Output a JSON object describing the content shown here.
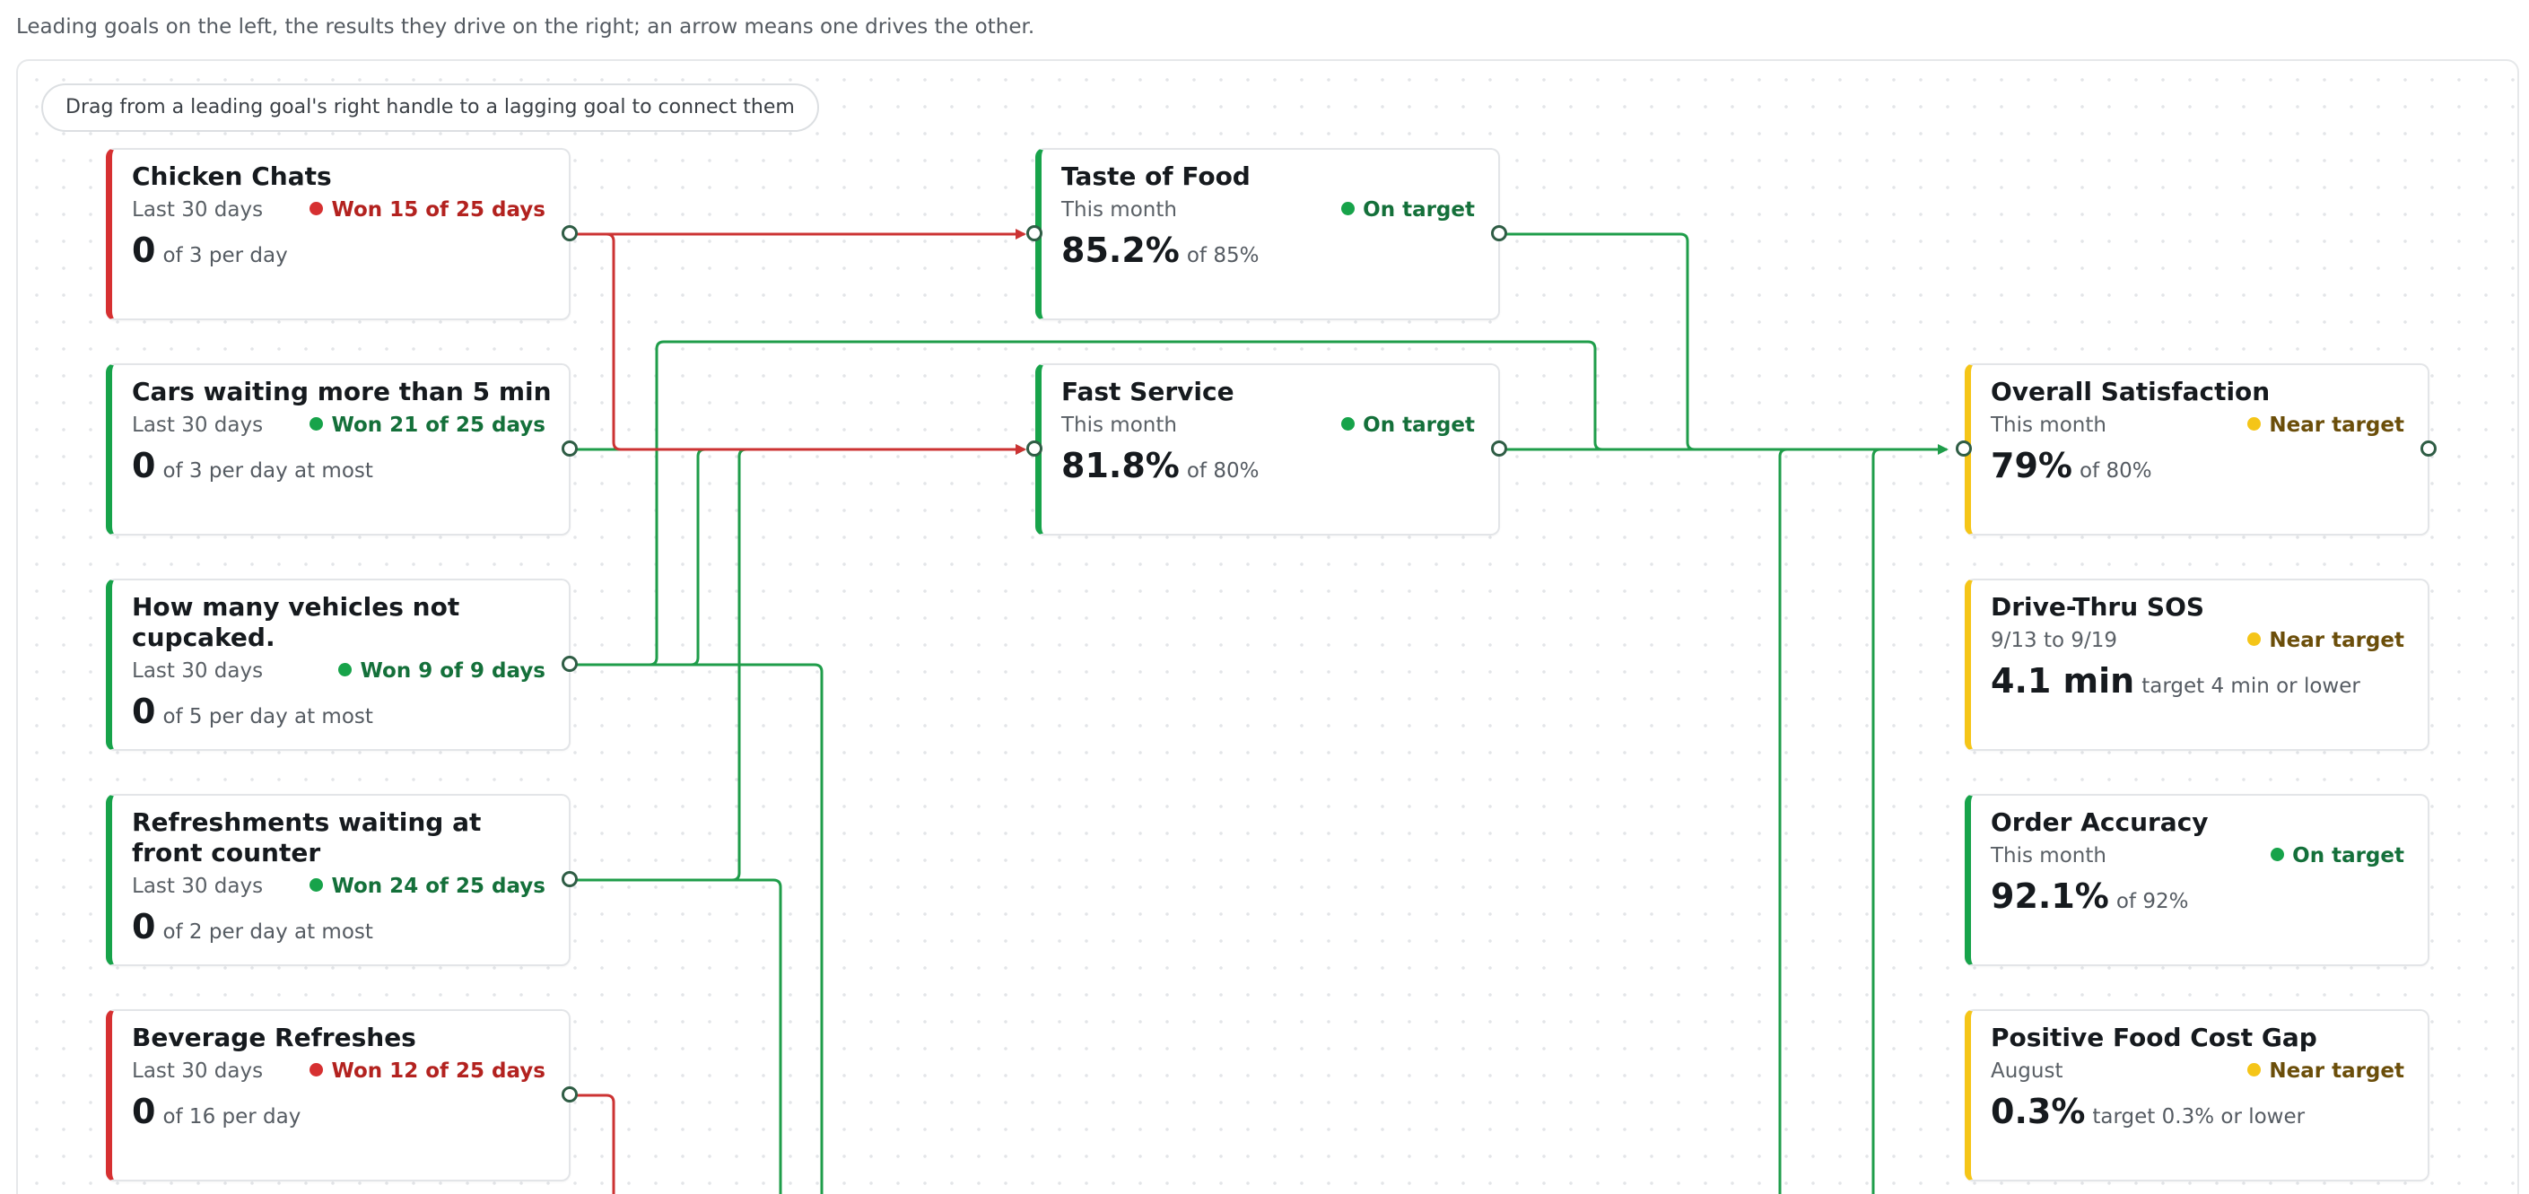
{
  "intro": "Leading goals on the left, the results they drive on the right; an arrow means one drives the other.",
  "hint": "Drag from a leading goal's right handle to a lagging goal to connect them",
  "colors": {
    "red": "#d63031",
    "green": "#17a34a",
    "yellow": "#f5c518",
    "wire_green": "#1f9d4a",
    "wire_red": "#cc3333"
  },
  "leading_goals": [
    {
      "title": "Chicken Chats",
      "period": "Last 30 days",
      "status": "Won 15 of 25 days",
      "status_color": "red",
      "value": "0",
      "target": "of 3 per day"
    },
    {
      "title": "Cars waiting more than 5 min",
      "period": "Last 30 days",
      "status": "Won 21 of 25 days",
      "status_color": "green",
      "value": "0",
      "target": "of 3 per day at most"
    },
    {
      "title": "How many vehicles not cupcaked.",
      "period": "Last 30 days",
      "status": "Won 9 of 9 days",
      "status_color": "green",
      "value": "0",
      "target": "of 5 per day at most"
    },
    {
      "title": "Refreshments waiting at front counter",
      "period": "Last 30 days",
      "status": "Won 24 of 25 days",
      "status_color": "green",
      "value": "0",
      "target": "of 2 per day at most"
    },
    {
      "title": "Beverage Refreshes",
      "period": "Last 30 days",
      "status": "Won 12 of 25 days",
      "status_color": "red",
      "value": "0",
      "target": "of 16 per day"
    }
  ],
  "middle_goals": [
    {
      "title": "Taste of Food",
      "period": "This month",
      "status": "On target",
      "status_color": "green",
      "value": "85.2%",
      "target": "of 85%"
    },
    {
      "title": "Fast Service",
      "period": "This month",
      "status": "On target",
      "status_color": "green",
      "value": "81.8%",
      "target": "of 80%"
    }
  ],
  "lagging_goals": [
    {
      "title": "Overall Satisfaction",
      "period": "This month",
      "status": "Near target",
      "status_color": "yellow",
      "value": "79%",
      "target": "of 80%"
    },
    {
      "title": "Drive-Thru SOS",
      "period": "9/13 to 9/19",
      "status": "Near target",
      "status_color": "yellow",
      "value": "4.1 min",
      "target": "target 4 min or lower"
    },
    {
      "title": "Order Accuracy",
      "period": "This month",
      "status": "On target",
      "status_color": "green",
      "value": "92.1%",
      "target": "of 92%"
    },
    {
      "title": "Positive Food Cost Gap",
      "period": "August",
      "status": "Near target",
      "status_color": "yellow",
      "value": "0.3%",
      "target": "target 0.3% or lower"
    }
  ]
}
